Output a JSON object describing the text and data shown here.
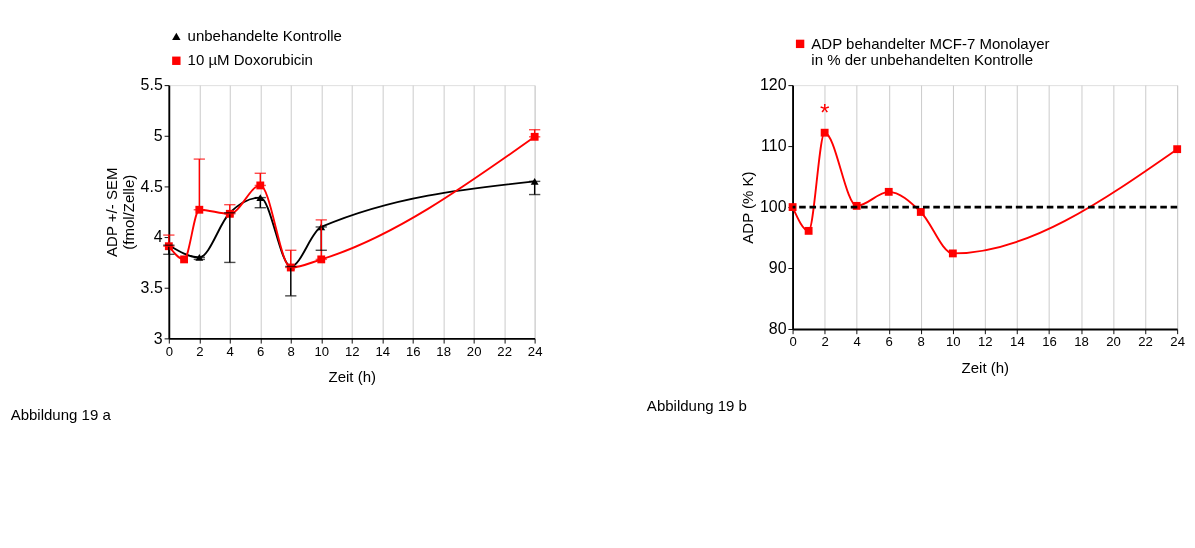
{
  "chart_data": [
    {
      "type": "line",
      "xlabel": "Zeit (h)",
      "ylabel": "ADP +/- SEM\n(fmol/Zelle)",
      "xlim": [
        0,
        24
      ],
      "xticks": [
        0,
        2,
        4,
        6,
        8,
        10,
        12,
        14,
        16,
        18,
        20,
        22,
        24
      ],
      "ylim": [
        3,
        5.5
      ],
      "yticks": [
        3,
        3.5,
        4,
        4.5,
        5,
        5.5
      ],
      "grid": "x",
      "legend": "top",
      "annotations": [
        "Abbildung 19 a"
      ],
      "series": [
        {
          "name": "unbehandelte Kontrolle",
          "color": "#000000",
          "marker": "triangle",
          "x": [
            0,
            2,
            4,
            6,
            8,
            10,
            24
          ],
          "values": [
            3.92,
            3.8,
            4.24,
            4.39,
            3.71,
            4.1,
            4.55
          ],
          "errors": [
            [
              3.83,
              3.92
            ],
            [
              3.78,
              3.8
            ],
            [
              3.75,
              4.24
            ],
            [
              4.29,
              4.39
            ],
            [
              3.42,
              3.71
            ],
            [
              3.87,
              4.1
            ],
            [
              4.42,
              4.55
            ]
          ]
        },
        {
          "name": "10 µM Doxorubicin",
          "color": "#ff0000",
          "marker": "square",
          "x": [
            0,
            1,
            2,
            4,
            6,
            8,
            10,
            24
          ],
          "values": [
            3.91,
            3.78,
            4.27,
            4.23,
            4.51,
            3.7,
            3.78,
            4.99
          ],
          "errors": [
            [
              3.91,
              4.02
            ],
            null,
            [
              4.27,
              4.77
            ],
            [
              4.23,
              4.32
            ],
            [
              4.51,
              4.63
            ],
            [
              3.7,
              3.87
            ],
            [
              3.78,
              4.17
            ],
            [
              4.99,
              5.06
            ]
          ]
        }
      ]
    },
    {
      "type": "line",
      "xlabel": "Zeit (h)",
      "ylabel": "ADP (% K)",
      "xlim": [
        0,
        24
      ],
      "xticks": [
        0,
        2,
        4,
        6,
        8,
        10,
        12,
        14,
        16,
        18,
        20,
        22,
        24
      ],
      "ylim": [
        80,
        120
      ],
      "yticks": [
        80,
        90,
        100,
        110,
        120
      ],
      "grid": "x",
      "legend": "top",
      "annotations": [
        {
          "text": "*",
          "x": 2,
          "y": 112.2
        },
        "Abbildung 19 b"
      ],
      "ref_lines": [
        {
          "axis": "y",
          "value": 100,
          "color": "#000000",
          "line_style": "dashed"
        }
      ],
      "series": [
        {
          "name": "ADP behandelter MCF-7 Monolayer\nin % der unbehandelten Kontrolle",
          "color": "#ff0000",
          "marker": "square",
          "x": [
            0,
            1,
            2,
            4,
            6,
            8,
            10,
            24
          ],
          "values": [
            100,
            96.1,
            112.2,
            100.2,
            102.5,
            99.2,
            92.4,
            109.5
          ]
        }
      ]
    }
  ]
}
